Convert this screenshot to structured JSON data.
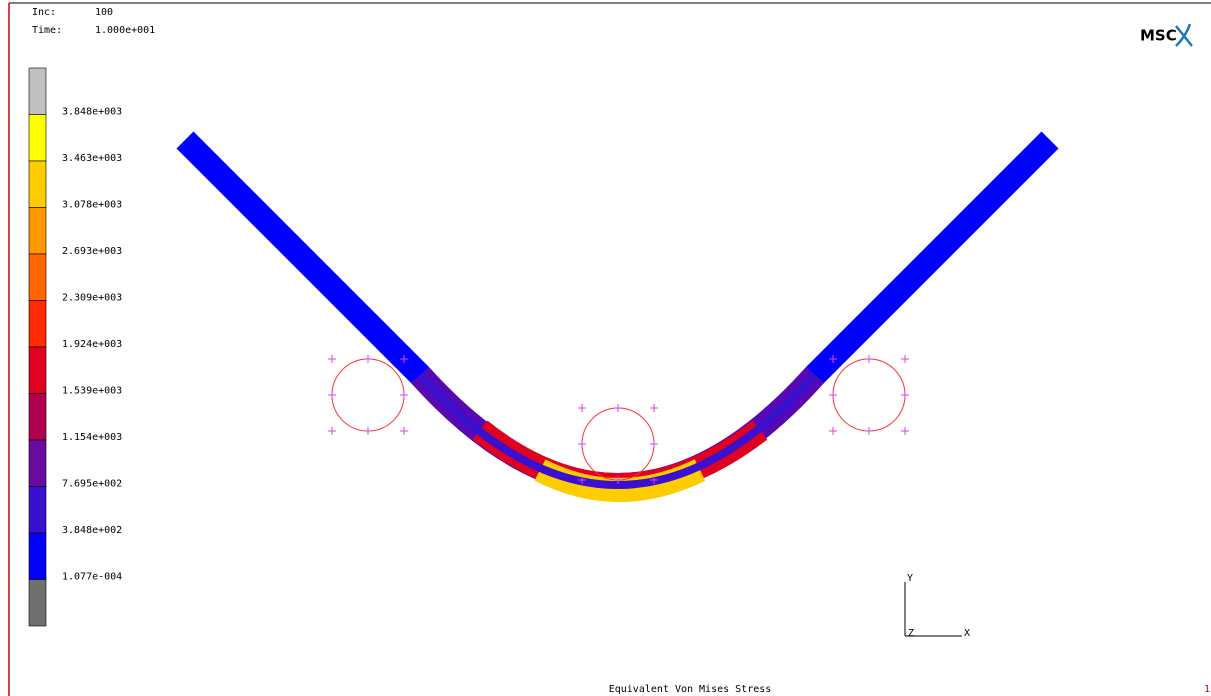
{
  "header": {
    "inc_label": "Inc:",
    "inc_value": "100",
    "time_label": "Time:",
    "time_value": "1.000e+001",
    "logo": "MSC"
  },
  "legend": {
    "labels": [
      "3.848e+003",
      "3.463e+003",
      "3.078e+003",
      "2.693e+003",
      "2.309e+003",
      "1.924e+003",
      "1.539e+003",
      "1.154e+003",
      "7.695e+002",
      "3.848e+002",
      "1.077e-004"
    ],
    "colors": [
      "#c0c0c0",
      "#ffff00",
      "#ffcc00",
      "#ff9900",
      "#ff6600",
      "#ff2a00",
      "#e00020",
      "#b00050",
      "#6a0aa0",
      "#3a10d0",
      "#0000ff",
      "#707070"
    ]
  },
  "axes": {
    "y": "Y",
    "x": "X",
    "z": "Z"
  },
  "footer": {
    "title": "Equivalent Von Mises Stress",
    "page": "1"
  }
}
